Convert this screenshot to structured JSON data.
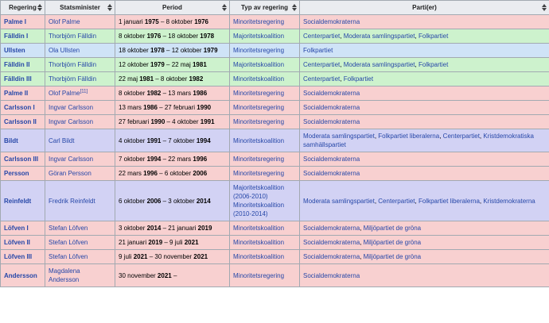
{
  "colors": {
    "row_social_democrat_pink": "#f8d0d0",
    "row_center_led_green": "#cdf2cd",
    "row_liberal_blue": "#cfe3f7",
    "row_moderate_lavender": "#d2d2f4",
    "header_gray": "#eaecf0",
    "border_gray": "#a2a9b1",
    "link_blue": "#2647a8"
  },
  "icons": {
    "sort": "sort-arrows (up/down triangles)"
  },
  "table": {
    "columns": [
      {
        "key": "regering",
        "label": "Regering"
      },
      {
        "key": "statsminister",
        "label": "Statsminister"
      },
      {
        "key": "period",
        "label": "Period"
      },
      {
        "key": "typ",
        "label": "Typ av regering"
      },
      {
        "key": "partier",
        "label": "Parti(er)"
      }
    ],
    "rows": [
      {
        "regering": "Palme I",
        "statsminister": "Olof Palme",
        "ref": "",
        "period": "1 januari 1975 – 8 oktober 1976",
        "typ": [
          "Minoritetsregering"
        ],
        "partier": "Socialdemokraterna",
        "color": "pink"
      },
      {
        "regering": "Fälldin I",
        "statsminister": "Thorbjörn Fälldin",
        "ref": "",
        "period": "8 oktober 1976 – 18 oktober 1978",
        "typ": [
          "Majoritetskoalition"
        ],
        "partier": "Centerpartiet, Moderata samlingspartiet, Folkpartiet",
        "color": "green"
      },
      {
        "regering": "Ullsten",
        "statsminister": "Ola Ullsten",
        "ref": "",
        "period": "18 oktober 1978 – 12 oktober 1979",
        "typ": [
          "Minoritetsregering"
        ],
        "partier": "Folkpartiet",
        "color": "blue"
      },
      {
        "regering": "Fälldin II",
        "statsminister": "Thorbjörn Fälldin",
        "ref": "",
        "period": "12 oktober 1979 – 22 maj 1981",
        "typ": [
          "Majoritetskoalition"
        ],
        "partier": "Centerpartiet, Moderata samlingspartiet, Folkpartiet",
        "color": "green"
      },
      {
        "regering": "Fälldin III",
        "statsminister": "Thorbjörn Fälldin",
        "ref": "",
        "period": "22 maj 1981 – 8 oktober 1982",
        "typ": [
          "Minoritetskoalition"
        ],
        "partier": "Centerpartiet, Folkpartiet",
        "color": "green"
      },
      {
        "regering": "Palme II",
        "statsminister": "Olof Palme",
        "ref": "[11]",
        "period": "8 oktober 1982 – 13 mars 1986",
        "typ": [
          "Minoritetsregering"
        ],
        "partier": "Socialdemokraterna",
        "color": "pink"
      },
      {
        "regering": "Carlsson I",
        "statsminister": "Ingvar Carlsson",
        "ref": "",
        "period": "13 mars 1986 – 27 februari 1990",
        "typ": [
          "Minoritetsregering"
        ],
        "partier": "Socialdemokraterna",
        "color": "pink"
      },
      {
        "regering": "Carlsson II",
        "statsminister": "Ingvar Carlsson",
        "ref": "",
        "period": "27 februari 1990 – 4 oktober 1991",
        "typ": [
          "Minoritetsregering"
        ],
        "partier": "Socialdemokraterna",
        "color": "pink"
      },
      {
        "regering": "Bildt",
        "statsminister": "Carl Bildt",
        "ref": "",
        "period": "4 oktober 1991 – 7 oktober 1994",
        "typ": [
          "Minoritetskoalition"
        ],
        "partier": "Moderata samlingspartiet, Folkpartiet liberalerna, Centerpartiet, Kristdemokratiska samhällspartiet",
        "color": "lavender"
      },
      {
        "regering": "Carlsson III",
        "statsminister": "Ingvar Carlsson",
        "ref": "",
        "period": "7 oktober 1994 – 22 mars 1996",
        "typ": [
          "Minoritetsregering"
        ],
        "partier": "Socialdemokraterna",
        "color": "pink"
      },
      {
        "regering": "Persson",
        "statsminister": "Göran Persson",
        "ref": "",
        "period": "22 mars 1996 – 6 oktober 2006",
        "typ": [
          "Minoritetsregering"
        ],
        "partier": "Socialdemokraterna",
        "color": "pink"
      },
      {
        "regering": "Reinfeldt",
        "statsminister": "Fredrik Reinfeldt",
        "ref": "",
        "period": "6 oktober 2006 – 3 oktober 2014",
        "typ": [
          "Majoritetskoalition (2006-2010)",
          "Minoritetskoalition (2010-2014)"
        ],
        "partier": "Moderata samlingspartiet, Centerpartiet, Folkpartiet liberalerna, Kristdemokraterna",
        "color": "lavender"
      },
      {
        "regering": "Löfven I",
        "statsminister": "Stefan Löfven",
        "ref": "",
        "period": "3 oktober 2014 – 21 januari 2019",
        "typ": [
          "Minoritetskoalition"
        ],
        "partier": "Socialdemokraterna, Miljöpartiet de gröna",
        "color": "pink"
      },
      {
        "regering": "Löfven II",
        "statsminister": "Stefan Löfven",
        "ref": "",
        "period": "21 januari 2019 – 9 juli 2021",
        "typ": [
          "Minoritetskoalition"
        ],
        "partier": "Socialdemokraterna, Miljöpartiet de gröna",
        "color": "pink"
      },
      {
        "regering": "Löfven III",
        "statsminister": "Stefan Löfven",
        "ref": "",
        "period": "9 juli 2021 – 30 november 2021",
        "typ": [
          "Minoritetskoalition"
        ],
        "partier": "Socialdemokraterna, Miljöpartiet de gröna",
        "color": "pink"
      },
      {
        "regering": "Andersson",
        "statsminister": "Magdalena Andersson",
        "ref": "",
        "period": "30 november 2021 –",
        "typ": [
          "Minoritetsregering"
        ],
        "partier": "Socialdemokraterna",
        "color": "pink"
      }
    ]
  }
}
